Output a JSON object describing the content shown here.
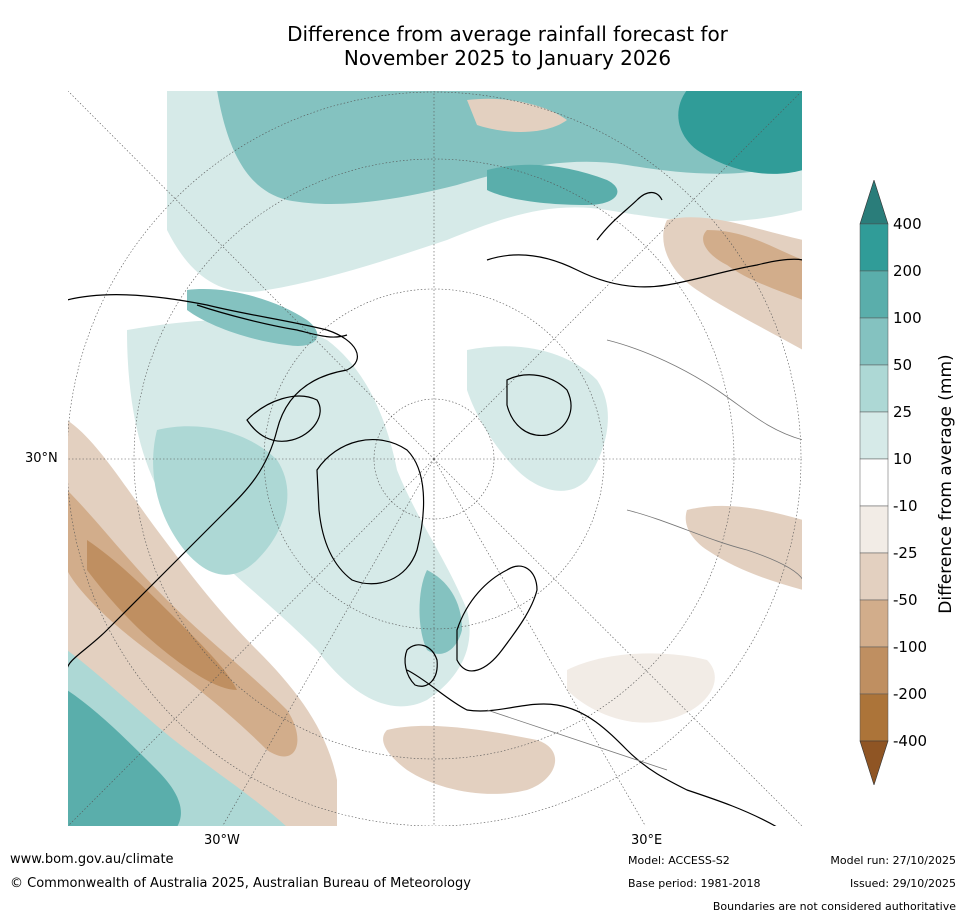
{
  "title": {
    "line1": "Difference from average rainfall forecast for",
    "line2": "November 2025 to January 2026"
  },
  "map": {
    "projection": "north-polar stereographic",
    "lat_label": "30°N",
    "lon_labels": [
      "30°W",
      "30°E"
    ]
  },
  "colorbar": {
    "title": "Difference from average (mm)",
    "labels": [
      "400",
      "200",
      "100",
      "50",
      "25",
      "10",
      "-10",
      "-25",
      "-50",
      "-100",
      "-200",
      "-400"
    ],
    "colors": [
      "#2a7d7a",
      "#309c98",
      "#5aaeab",
      "#84c2c0",
      "#add8d5",
      "#d6eae8",
      "#ffffff",
      "#f2ece6",
      "#e3d0c0",
      "#d2ad8b",
      "#bf8f61",
      "#ac7439",
      "#8f5524"
    ]
  },
  "footer": {
    "url": "www.bom.gov.au/climate",
    "copyright": "© Commonwealth of Australia 2025, Australian Bureau of Meteorology",
    "model": "Model: ACCESS-S2",
    "base_period": "Base period: 1981-2018",
    "model_run": "Model run: 27/10/2025",
    "issued": "Issued: 29/10/2025",
    "boundaries": "Boundaries are not considered authoritative"
  }
}
